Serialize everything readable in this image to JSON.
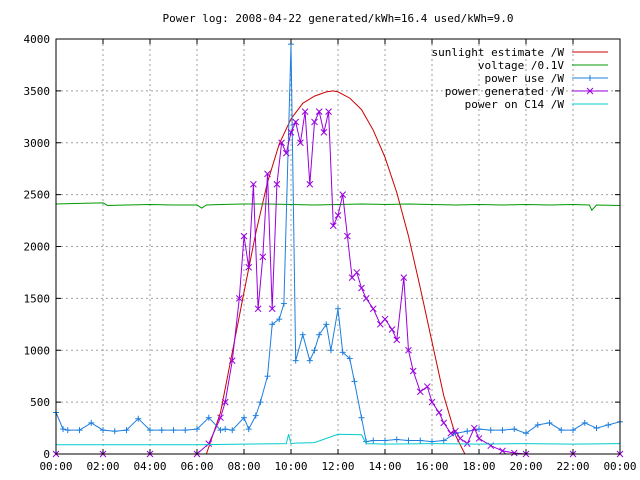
{
  "chart_data": {
    "type": "line",
    "title": "Power log: 2008-04-22 generated/kWh=16.4 used/kWh=9.0",
    "xlabel": "",
    "ylabel": "",
    "x_ticks": [
      "00:00",
      "02:00",
      "04:00",
      "06:00",
      "08:00",
      "10:00",
      "12:00",
      "14:00",
      "16:00",
      "18:00",
      "20:00",
      "22:00",
      "00:00"
    ],
    "y_ticks": [
      "0",
      "500",
      "1000",
      "1500",
      "2000",
      "2500",
      "3000",
      "3500",
      "4000"
    ],
    "xlim": [
      0,
      24
    ],
    "ylim": [
      0,
      4000
    ],
    "grid": true,
    "legend_position": "top-right",
    "series": [
      {
        "name": "sunlight estimate /W",
        "color": "#cc0000",
        "marker": "none",
        "x": [
          6.4,
          7.0,
          7.5,
          8.0,
          8.5,
          9.0,
          9.5,
          10.0,
          10.5,
          11.0,
          11.5,
          11.8,
          12.0,
          12.5,
          13.0,
          13.5,
          14.0,
          14.5,
          15.0,
          15.5,
          16.0,
          16.5,
          17.0,
          17.4
        ],
        "y": [
          0,
          400,
          980,
          1560,
          2130,
          2620,
          2990,
          3230,
          3380,
          3450,
          3490,
          3500,
          3490,
          3430,
          3320,
          3120,
          2860,
          2520,
          2100,
          1600,
          1080,
          560,
          180,
          0
        ]
      },
      {
        "name": "voltage /0.1V",
        "color": "#009900",
        "marker": "none",
        "x": [
          0,
          1,
          2,
          2.2,
          3,
          4,
          5,
          6,
          6.2,
          6.4,
          7,
          8,
          9,
          10,
          11,
          12,
          13,
          14,
          15,
          16,
          17,
          18,
          19,
          20,
          21,
          22,
          22.7,
          22.8,
          23,
          24
        ],
        "y": [
          2410,
          2415,
          2420,
          2395,
          2400,
          2405,
          2400,
          2400,
          2370,
          2400,
          2405,
          2410,
          2410,
          2405,
          2400,
          2405,
          2410,
          2405,
          2410,
          2405,
          2400,
          2405,
          2400,
          2405,
          2400,
          2405,
          2400,
          2350,
          2400,
          2395
        ]
      },
      {
        "name": "power use /W",
        "color": "#1e7fdd",
        "marker": "plus",
        "x": [
          0,
          0.3,
          0.5,
          1,
          1.5,
          2,
          2.5,
          3,
          3.5,
          4,
          4.5,
          5,
          5.5,
          6,
          6.5,
          7,
          7.2,
          7.5,
          8,
          8.2,
          8.5,
          8.7,
          9,
          9.2,
          9.5,
          9.7,
          10,
          10.2,
          10.5,
          10.8,
          11,
          11.2,
          11.5,
          11.7,
          12,
          12.2,
          12.5,
          12.7,
          13,
          13.2,
          13.5,
          14,
          14.5,
          15,
          15.5,
          16,
          16.5,
          17,
          17.5,
          18,
          18.5,
          19,
          19.5,
          20,
          20.5,
          21,
          21.5,
          22,
          22.5,
          23,
          23.5,
          24
        ],
        "y": [
          400,
          240,
          230,
          230,
          300,
          230,
          220,
          230,
          340,
          230,
          230,
          230,
          230,
          240,
          350,
          230,
          240,
          230,
          350,
          240,
          370,
          500,
          750,
          1250,
          1300,
          1450,
          3950,
          900,
          1150,
          900,
          1000,
          1150,
          1250,
          1000,
          1400,
          980,
          920,
          700,
          350,
          120,
          130,
          130,
          140,
          130,
          130,
          120,
          130,
          200,
          220,
          240,
          230,
          230,
          240,
          200,
          280,
          300,
          230,
          230,
          300,
          250,
          280,
          310
        ]
      },
      {
        "name": "power generated /W",
        "color": "#9900dd",
        "marker": "cross",
        "x": [
          0,
          2,
          4,
          6,
          6.5,
          7,
          7.2,
          7.5,
          7.8,
          8,
          8.2,
          8.4,
          8.6,
          8.8,
          9,
          9.2,
          9.4,
          9.6,
          9.8,
          10,
          10.2,
          10.4,
          10.6,
          10.8,
          11,
          11.2,
          11.4,
          11.6,
          11.8,
          12,
          12.2,
          12.4,
          12.6,
          12.8,
          13,
          13.2,
          13.5,
          13.8,
          14,
          14.3,
          14.5,
          14.8,
          15,
          15.2,
          15.5,
          15.8,
          16,
          16.3,
          16.5,
          16.8,
          17,
          17.2,
          17.5,
          17.8,
          18,
          18.5,
          19,
          19.5,
          20,
          22,
          24
        ],
        "y": [
          0,
          0,
          0,
          0,
          100,
          350,
          500,
          900,
          1500,
          2100,
          1800,
          2600,
          1400,
          1900,
          2700,
          1400,
          2600,
          3000,
          2900,
          3100,
          3200,
          3000,
          3300,
          2600,
          3200,
          3300,
          3100,
          3300,
          2200,
          2300,
          2500,
          2100,
          1700,
          1750,
          1600,
          1500,
          1400,
          1250,
          1300,
          1200,
          1100,
          1700,
          1000,
          800,
          600,
          650,
          500,
          400,
          300,
          200,
          220,
          150,
          100,
          250,
          150,
          80,
          30,
          10,
          0,
          0,
          0
        ]
      },
      {
        "name": "power on C14 /W",
        "color": "#00cccc",
        "marker": "none",
        "x": [
          0,
          2,
          4,
          6,
          8,
          9.8,
          9.9,
          10,
          10.2,
          11,
          12,
          13,
          13.2,
          14,
          16,
          18,
          20,
          22,
          24
        ],
        "y": [
          90,
          90,
          90,
          90,
          95,
          100,
          190,
          100,
          105,
          110,
          190,
          185,
          100,
          95,
          100,
          95,
          100,
          95,
          100
        ]
      }
    ]
  }
}
